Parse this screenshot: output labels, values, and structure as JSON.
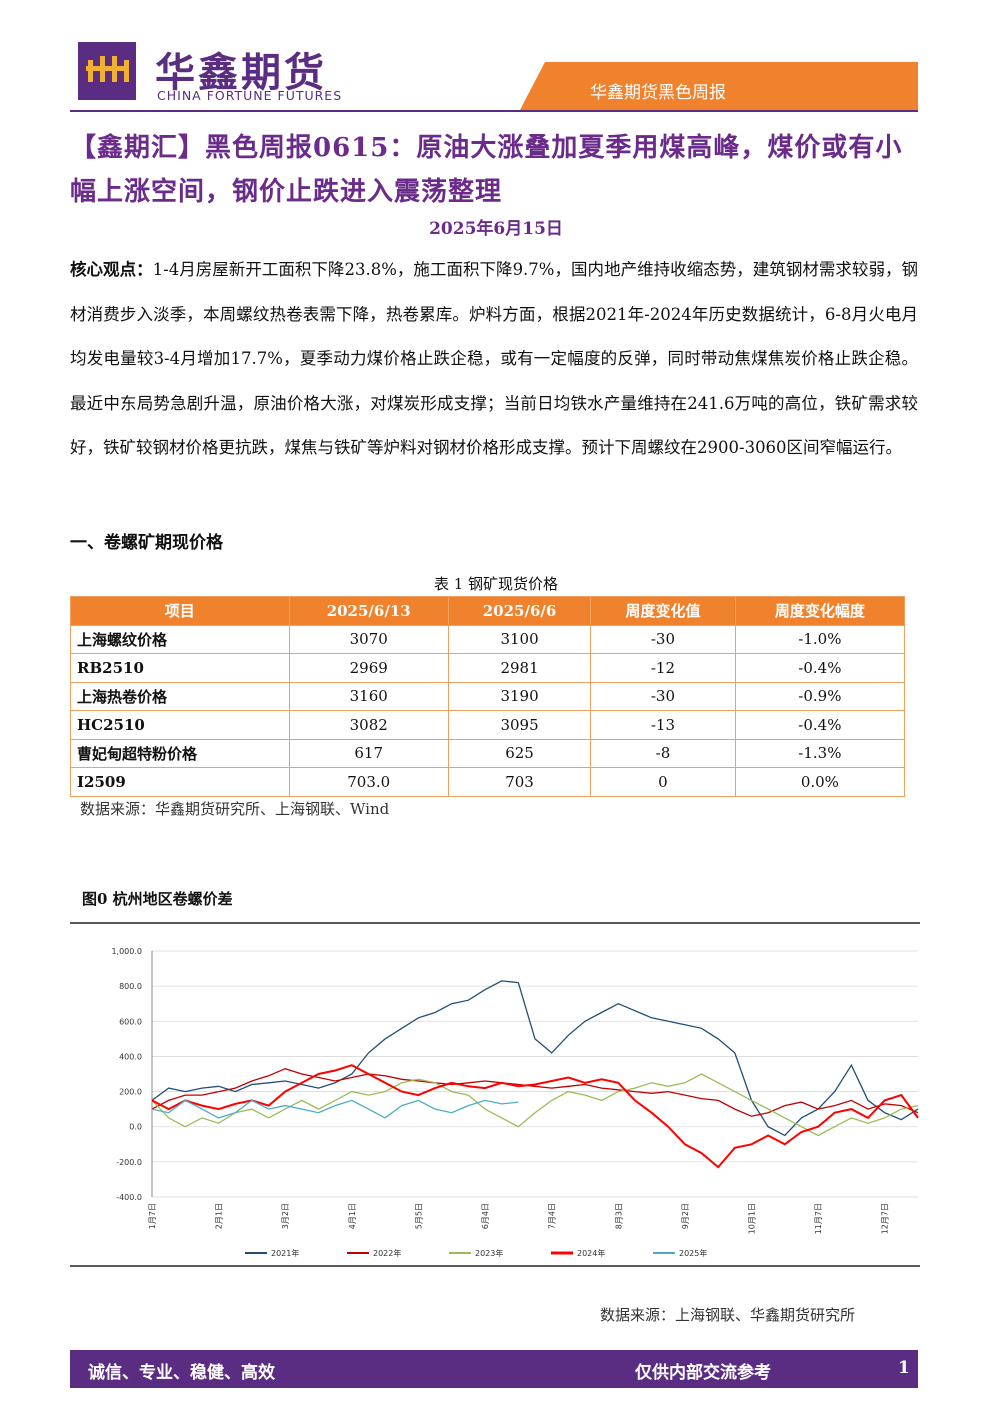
{
  "header": {
    "brand": "华鑫期货",
    "brand_en": "CHINA FORTUNE FUTURES",
    "tag": "华鑫期货黑色周报"
  },
  "title": "【鑫期汇】黑色周报0615：原油大涨叠加夏季用煤高峰，煤价或有小幅上涨空间，钢价止跌进入震荡整理",
  "date": "2025年6月15日",
  "core": {
    "label": "核心观点：",
    "text": "1-4月房屋新开工面积下降23.8%，施工面积下降9.7%，国内地产维持收缩态势，建筑钢材需求较弱，钢材消费步入淡季，本周螺纹热卷表需下降，热卷累库。炉料方面，根据2021年-2024年历史数据统计，6-8月火电月均发电量较3-4月增加17.7%，夏季动力煤价格止跌企稳，或有一定幅度的反弹，同时带动焦煤焦炭价格止跌企稳。最近中东局势急剧升温，原油价格大涨，对煤炭形成支撑；当前日均铁水产量维持在241.6万吨的高位，铁矿需求较好，铁矿较钢材价格更抗跌，煤焦与铁矿等炉料对钢材价格形成支撑。预计下周螺纹在2900-3060区间窄幅运行。"
  },
  "section": "一、卷螺矿期现价格",
  "table": {
    "caption": "表 1 钢矿现货价格",
    "header": [
      "项目",
      "2025/6/13",
      "2025/6/6",
      "周度变化值",
      "周度变化幅度"
    ],
    "rows": [
      [
        "上海螺纹价格",
        "3070",
        "3100",
        "-30",
        "-1.0%"
      ],
      [
        "RB2510",
        "2969",
        "2981",
        "-12",
        "-0.4%"
      ],
      [
        "上海热卷价格",
        "3160",
        "3190",
        "-30",
        "-0.9%"
      ],
      [
        "HC2510",
        "3082",
        "3095",
        "-13",
        "-0.4%"
      ],
      [
        "曹妃甸超特粉价格",
        "617",
        "625",
        "-8",
        "-1.3%"
      ],
      [
        "I2509",
        "703.0",
        "703",
        "0",
        "0.0%"
      ]
    ],
    "source": "数据来源：华鑫期货研究所、上海钢联、Wind"
  },
  "figure_title": "图0 杭州地区卷螺价差",
  "chart_data": {
    "type": "line",
    "categories": [
      "1月7日",
      null,
      null,
      null,
      "2月1日",
      null,
      null,
      null,
      "3月2日",
      null,
      null,
      null,
      "4月1日",
      null,
      null,
      null,
      "5月5日",
      null,
      null,
      null,
      "6月4日",
      null,
      null,
      null,
      "7月4日",
      null,
      null,
      null,
      "8月3日",
      null,
      null,
      null,
      "9月2日",
      null,
      null,
      null,
      "10月1日",
      null,
      null,
      null,
      "11月7日",
      null,
      null,
      null,
      "12月7日",
      null,
      null
    ],
    "ylim": [
      -400,
      1000
    ],
    "yticks": [
      {
        "value": -400,
        "label": "-400.0"
      },
      {
        "value": -200,
        "label": "-200.0"
      },
      {
        "value": 0,
        "label": "0.0"
      },
      {
        "value": 200,
        "label": "200.0"
      },
      {
        "value": 400,
        "label": "400.0"
      },
      {
        "value": 600,
        "label": "600.0"
      },
      {
        "value": 800,
        "label": "800.0"
      },
      {
        "value": 1000,
        "label": "1,000.0"
      }
    ],
    "grid": true,
    "series": [
      {
        "name": "2021年",
        "color": "#1f4e79",
        "values": [
          150,
          220,
          200,
          220,
          230,
          200,
          240,
          250,
          260,
          240,
          220,
          250,
          300,
          420,
          500,
          560,
          620,
          650,
          700,
          720,
          780,
          830,
          820,
          500,
          420,
          520,
          600,
          650,
          700,
          660,
          620,
          600,
          580,
          560,
          500,
          420,
          150,
          0,
          -50,
          50,
          100,
          200,
          350,
          150,
          80,
          40,
          100
        ]
      },
      {
        "name": "2022年",
        "color": "#c00000",
        "values": [
          100,
          150,
          180,
          180,
          200,
          220,
          260,
          290,
          330,
          300,
          280,
          260,
          280,
          300,
          290,
          270,
          260,
          250,
          240,
          250,
          260,
          250,
          240,
          230,
          220,
          230,
          240,
          220,
          210,
          200,
          190,
          200,
          180,
          160,
          150,
          100,
          60,
          80,
          120,
          140,
          100,
          120,
          150,
          100,
          130,
          120,
          80
        ]
      },
      {
        "name": "2023年",
        "color": "#9bbb59",
        "values": [
          150,
          50,
          0,
          50,
          20,
          80,
          100,
          50,
          100,
          150,
          100,
          150,
          200,
          180,
          200,
          250,
          270,
          250,
          200,
          180,
          100,
          50,
          0,
          80,
          150,
          200,
          180,
          150,
          200,
          220,
          250,
          230,
          250,
          300,
          250,
          200,
          150,
          100,
          50,
          0,
          -50,
          0,
          50,
          20,
          50,
          100,
          120
        ]
      },
      {
        "name": "2024年",
        "color": "#ff0000",
        "values": [
          150,
          100,
          150,
          120,
          100,
          130,
          150,
          120,
          200,
          250,
          300,
          320,
          350,
          300,
          250,
          200,
          180,
          220,
          250,
          230,
          220,
          250,
          230,
          240,
          260,
          280,
          250,
          270,
          250,
          150,
          80,
          0,
          -100,
          -150,
          -230,
          -120,
          -100,
          -50,
          -100,
          -30,
          0,
          80,
          100,
          50,
          150,
          180,
          50
        ]
      },
      {
        "name": "2025年",
        "color": "#4bacc6",
        "values": [
          100,
          80,
          150,
          100,
          50,
          80,
          150,
          100,
          120,
          100,
          80,
          120,
          150,
          100,
          50,
          120,
          150,
          100,
          80,
          120,
          150,
          130,
          140,
          null,
          null,
          null,
          null,
          null,
          null,
          null,
          null,
          null,
          null,
          null,
          null,
          null,
          null,
          null,
          null,
          null,
          null,
          null,
          null,
          null,
          null,
          null,
          null
        ]
      }
    ]
  },
  "chart_source": "数据来源：上海钢联、华鑫期货研究所",
  "footer": {
    "left": "诚信、专业、稳健、高效",
    "right": "仅供内部交流参考",
    "page": "1"
  }
}
